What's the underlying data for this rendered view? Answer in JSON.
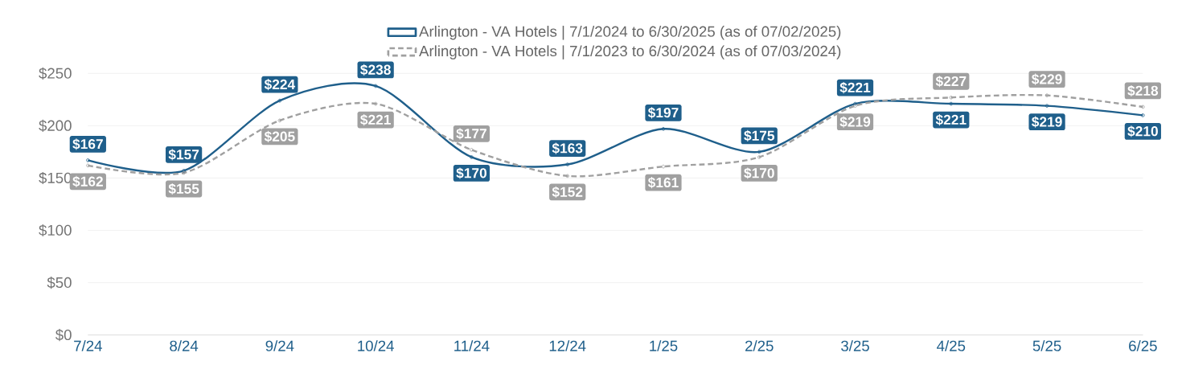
{
  "chart_data": {
    "type": "line",
    "categories": [
      "7/24",
      "8/24",
      "9/24",
      "10/24",
      "11/24",
      "12/24",
      "1/25",
      "2/25",
      "3/25",
      "4/25",
      "5/25",
      "6/25"
    ],
    "series": [
      {
        "name": "Arlington - VA Hotels | 7/1/2024 to 6/30/2025 (as of 07/02/2025)",
        "color": "#1f5f8b",
        "line_style": "solid",
        "values": [
          167,
          157,
          224,
          238,
          170,
          163,
          197,
          175,
          221,
          221,
          219,
          210
        ],
        "value_labels": [
          "$167",
          "$157",
          "$224",
          "$238",
          "$170",
          "$163",
          "$197",
          "$175",
          "$221",
          "$221",
          "$219",
          "$210"
        ]
      },
      {
        "name": "Arlington - VA Hotels | 7/1/2023 to 6/30/2024 (as of 07/03/2024)",
        "color": "#a0a0a0",
        "line_style": "dashed",
        "values": [
          162,
          155,
          205,
          221,
          177,
          152,
          161,
          170,
          219,
          227,
          229,
          218
        ],
        "value_labels": [
          "$162",
          "$155",
          "$205",
          "$221",
          "$177",
          "$152",
          "$161",
          "$170",
          "$219",
          "$227",
          "$229",
          "$218"
        ]
      }
    ],
    "ylim": [
      0,
      250
    ],
    "yticks": [
      {
        "value": 0,
        "label": "$0"
      },
      {
        "value": 50,
        "label": "$50"
      },
      {
        "value": 100,
        "label": "$100"
      },
      {
        "value": 150,
        "label": "$150"
      },
      {
        "value": 200,
        "label": "$200"
      },
      {
        "value": 250,
        "label": "$250"
      }
    ],
    "grid": "y",
    "legend": "top",
    "marker": "circle"
  }
}
